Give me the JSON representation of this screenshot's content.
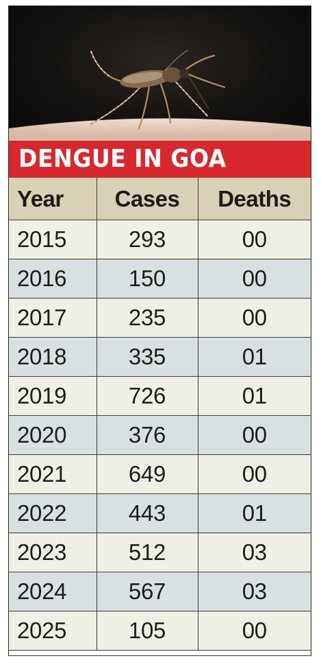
{
  "chart_data": {
    "type": "table",
    "title": "DENGUE IN GOA",
    "columns": [
      "Year",
      "Cases",
      "Deaths"
    ],
    "rows": [
      [
        "2015",
        "293",
        "00"
      ],
      [
        "2016",
        "150",
        "00"
      ],
      [
        "2017",
        "235",
        "00"
      ],
      [
        "2018",
        "335",
        "01"
      ],
      [
        "2019",
        "726",
        "01"
      ],
      [
        "2020",
        "376",
        "00"
      ],
      [
        "2021",
        "649",
        "00"
      ],
      [
        "2022",
        "443",
        "01"
      ],
      [
        "2023",
        "512",
        "03"
      ],
      [
        "2024",
        "567",
        "03"
      ],
      [
        "2025",
        "105",
        "00"
      ]
    ]
  },
  "colors": {
    "title_bar": "#d7282f",
    "title_text": "#ffffff",
    "header_bg": "#d9d1b4",
    "row_odd_bg": "#f0efe6",
    "row_even_bg": "#d9e0e2"
  },
  "image": {
    "icon": "mosquito-photo"
  }
}
